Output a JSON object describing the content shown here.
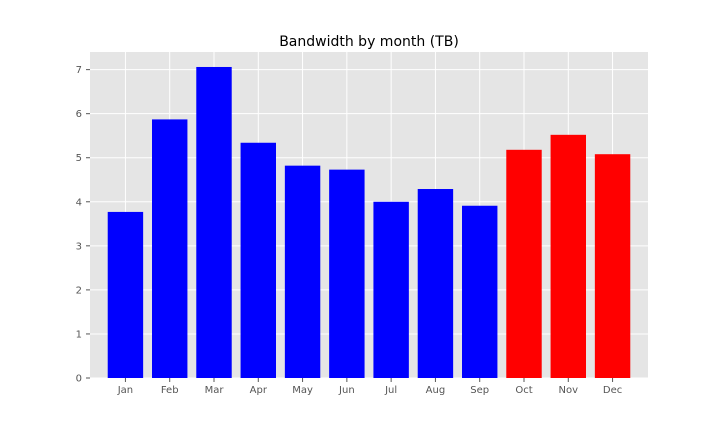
{
  "chart_data": {
    "type": "bar",
    "title": "Bandwidth by month (TB)",
    "xlabel": "",
    "ylabel": "",
    "categories": [
      "Jan",
      "Feb",
      "Mar",
      "Apr",
      "May",
      "Jun",
      "Jul",
      "Aug",
      "Sep",
      "Oct",
      "Nov",
      "Dec"
    ],
    "values": [
      3.77,
      5.87,
      7.06,
      5.34,
      4.82,
      4.73,
      4.0,
      4.29,
      3.91,
      5.18,
      5.52,
      5.08
    ],
    "bar_colors": [
      "#0000ff",
      "#0000ff",
      "#0000ff",
      "#0000ff",
      "#0000ff",
      "#0000ff",
      "#0000ff",
      "#0000ff",
      "#0000ff",
      "#ff0000",
      "#ff0000",
      "#ff0000"
    ],
    "ylim": [
      0,
      7.4
    ],
    "yticks": [
      0,
      1,
      2,
      3,
      4,
      5,
      6,
      7
    ],
    "grid": true,
    "plot_background": "#e5e5e5",
    "grid_color": "#ffffff"
  }
}
